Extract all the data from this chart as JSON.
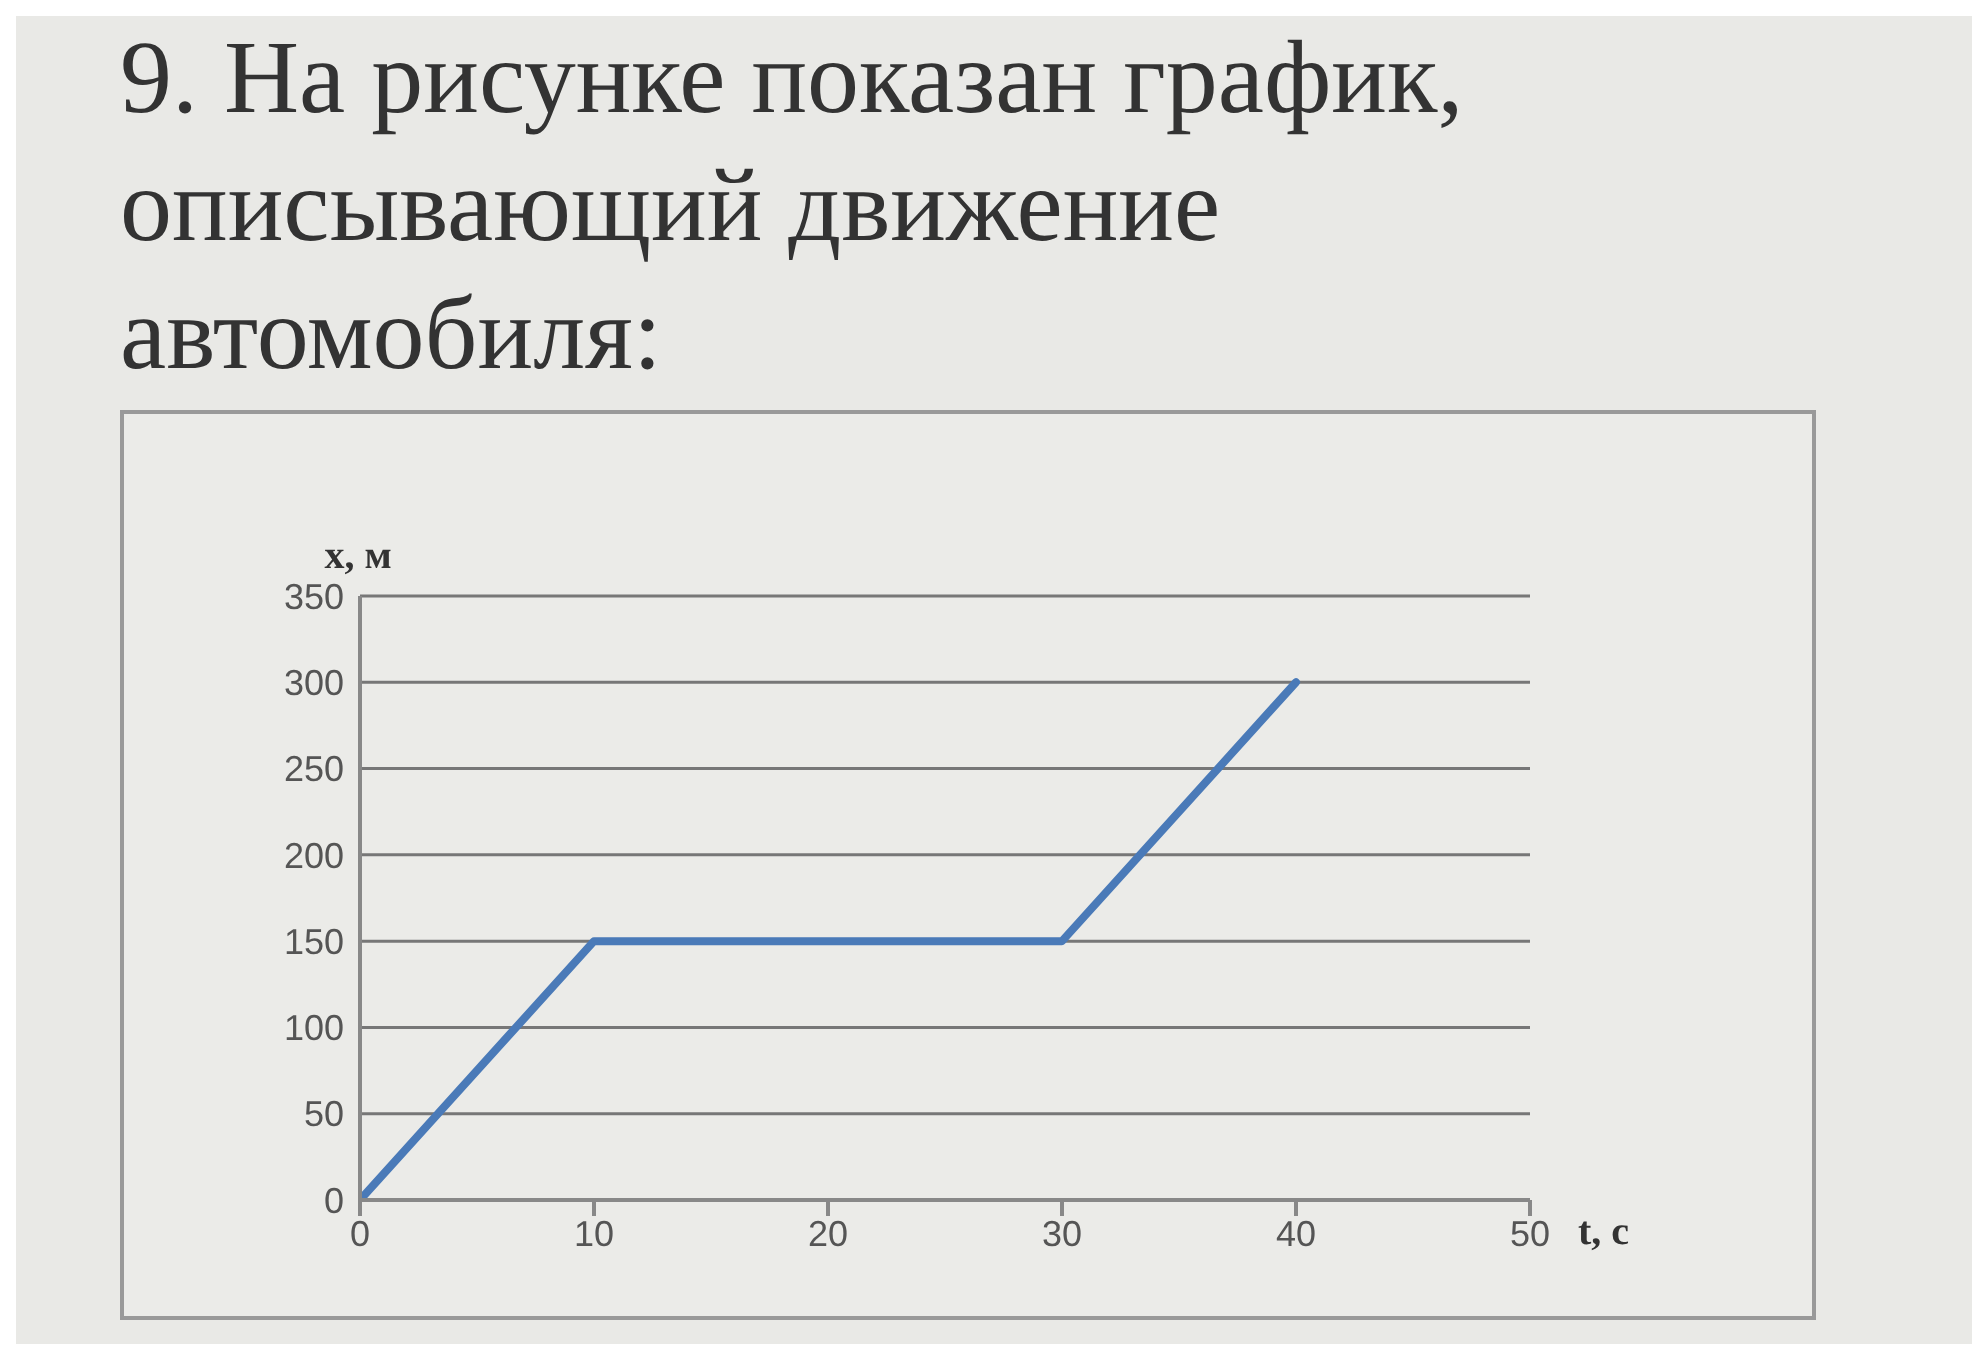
{
  "chart_data": {
    "type": "line",
    "title": "9. На рисунке показан график, описывающий движение автомобиля:",
    "xlabel": "t, с",
    "ylabel": "x, м",
    "x": [
      0,
      10,
      30,
      40
    ],
    "series": [
      {
        "color": "#4a7ab8",
        "values": [
          0,
          150,
          150,
          300
        ]
      }
    ],
    "xlim": [
      0,
      50
    ],
    "xticks": [
      0,
      10,
      20,
      30,
      40,
      50
    ],
    "ylim": [
      0,
      350
    ],
    "yticks": [
      0,
      50,
      100,
      150,
      200,
      250,
      300,
      350
    ],
    "grid": "y",
    "legend": false,
    "line_style": "solid"
  }
}
